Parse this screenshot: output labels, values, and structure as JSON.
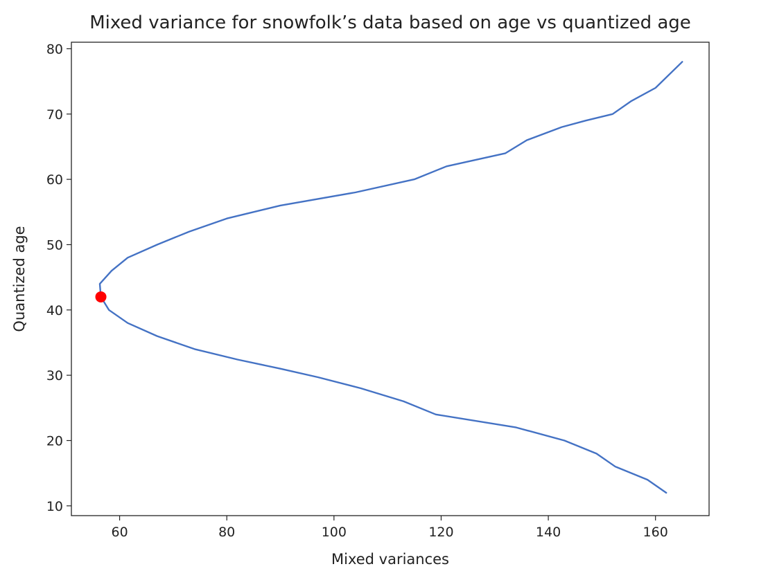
{
  "chart_data": {
    "type": "line",
    "title": "Mixed variance for snowfolk’s data based on age vs quantized age",
    "xlabel": "Mixed variances",
    "ylabel": "Quantized age",
    "xlim": [
      51,
      170
    ],
    "ylim": [
      8.5,
      81
    ],
    "xticks": [
      60,
      80,
      100,
      120,
      140,
      160
    ],
    "yticks": [
      10,
      20,
      30,
      40,
      50,
      60,
      70,
      80
    ],
    "grid": false,
    "series": [
      {
        "color": "#4472c4",
        "points": [
          [
            162,
            12
          ],
          [
            158.5,
            14
          ],
          [
            152.5,
            16
          ],
          [
            149,
            18
          ],
          [
            143,
            20
          ],
          [
            134,
            22
          ],
          [
            119,
            24
          ],
          [
            113,
            26
          ],
          [
            105,
            28
          ],
          [
            97,
            29.7
          ],
          [
            90,
            31
          ],
          [
            82,
            32.4
          ],
          [
            74,
            34
          ],
          [
            67,
            36
          ],
          [
            61.5,
            38
          ],
          [
            58,
            40
          ],
          [
            56.5,
            42
          ],
          [
            56.3,
            44
          ],
          [
            58.5,
            46
          ],
          [
            61.5,
            48
          ],
          [
            67,
            50
          ],
          [
            73,
            52
          ],
          [
            80,
            54
          ],
          [
            90,
            56
          ],
          [
            104,
            58
          ],
          [
            115,
            60
          ],
          [
            121,
            62
          ],
          [
            132,
            64
          ],
          [
            136,
            66
          ],
          [
            142.5,
            68
          ],
          [
            147,
            69
          ],
          [
            152,
            70
          ],
          [
            155.5,
            72
          ],
          [
            160,
            74
          ],
          [
            165,
            78
          ]
        ]
      }
    ],
    "highlight_point": {
      "x": 56.5,
      "y": 42,
      "color": "#ff0000"
    }
  }
}
